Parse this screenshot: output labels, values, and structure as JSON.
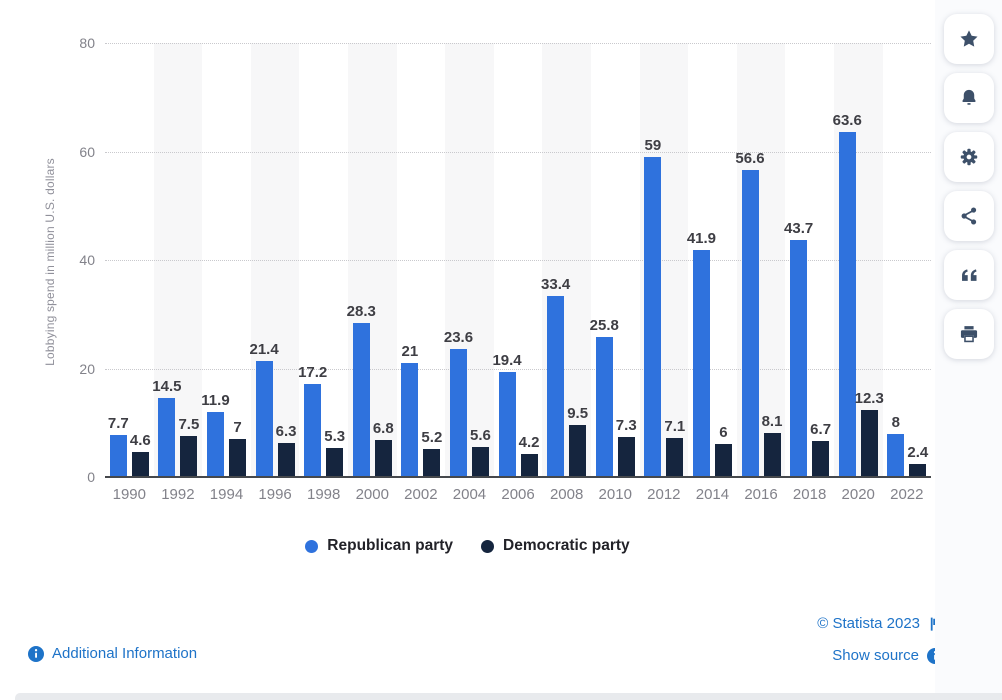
{
  "chart_data": {
    "type": "bar",
    "title": "",
    "xlabel": "",
    "ylabel": "Lobbying spend in million U.S. dollars",
    "ylim": [
      0,
      80
    ],
    "y_ticks": [
      0,
      20,
      40,
      60,
      80
    ],
    "grid": "horizontal dotted",
    "legend_position": "bottom",
    "categories": [
      "1990",
      "1992",
      "1994",
      "1996",
      "1998",
      "2000",
      "2002",
      "2004",
      "2006",
      "2008",
      "2010",
      "2012",
      "2014",
      "2016",
      "2018",
      "2020",
      "2022"
    ],
    "series": [
      {
        "name": "Republican party",
        "color": "#2f72dd",
        "values": [
          7.7,
          14.5,
          11.9,
          21.4,
          17.2,
          28.3,
          21,
          23.6,
          19.4,
          33.4,
          25.8,
          59,
          41.9,
          56.6,
          43.7,
          63.6,
          8
        ]
      },
      {
        "name": "Democratic party",
        "color": "#15253e",
        "values": [
          4.6,
          7.5,
          7,
          6.3,
          5.3,
          6.8,
          5.2,
          5.6,
          4.2,
          9.5,
          7.3,
          7.1,
          6,
          8.1,
          6.7,
          12.3,
          2.4
        ]
      }
    ]
  },
  "toolbar": {
    "buttons": [
      {
        "icon": "star-icon"
      },
      {
        "icon": "bell-icon"
      },
      {
        "icon": "gear-icon"
      },
      {
        "icon": "share-icon"
      },
      {
        "icon": "quote-icon"
      },
      {
        "icon": "print-icon"
      }
    ],
    "icon_color": "#3d5069"
  },
  "footer": {
    "additional_information": "Additional Information",
    "copyright": "© Statista 2023",
    "show_source": "Show source",
    "link_color": "#1e73c8"
  }
}
